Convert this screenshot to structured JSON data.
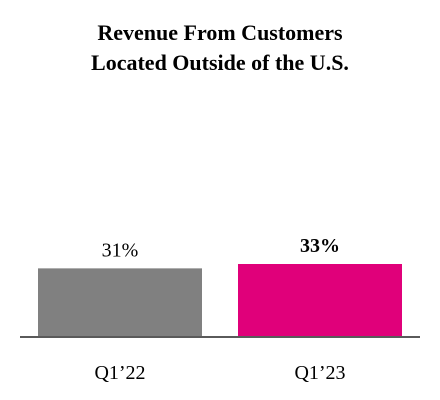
{
  "chart_data": {
    "type": "bar",
    "title_lines": [
      "Revenue From Customers",
      "Located Outside of the U.S."
    ],
    "categories": [
      "Q1’22",
      "Q1’23"
    ],
    "values": [
      31,
      33
    ],
    "value_labels": [
      "31%",
      "33%"
    ],
    "value_label_bold": [
      false,
      true
    ],
    "bar_colors": [
      "#808080",
      "#E0007A"
    ],
    "axis_color": "#5a5a5a",
    "ylim": [
      0,
      33
    ],
    "grid": false,
    "legend": "none",
    "xlabel": "",
    "ylabel": ""
  }
}
